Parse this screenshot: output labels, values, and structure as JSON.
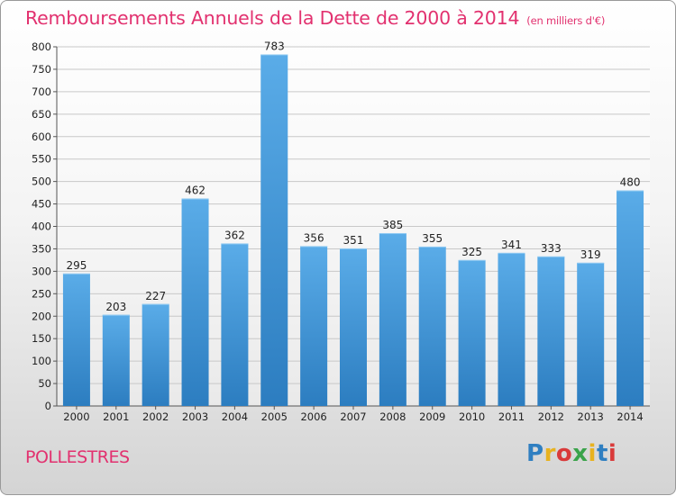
{
  "header": {
    "title": "Remboursements Annuels de la Dette de 2000 à 2014",
    "subtitle": "(en milliers d'€)"
  },
  "footer": {
    "town": "POLLESTRES",
    "logo_text": "Proxiti",
    "logo_letters": [
      {
        "ch": "P",
        "color": "#2f7fc1"
      },
      {
        "ch": "r",
        "color": "#e8b21f"
      },
      {
        "ch": "o",
        "color": "#d93a3a"
      },
      {
        "ch": "x",
        "color": "#3aa34a"
      },
      {
        "ch": "i",
        "color": "#e8b21f"
      },
      {
        "ch": "t",
        "color": "#2f7fc1"
      },
      {
        "ch": "i",
        "color": "#d93a3a"
      }
    ]
  },
  "colors": {
    "bar_top": "#5aace8",
    "bar_bottom": "#2c7dc0",
    "title": "#e2316f"
  },
  "chart_data": {
    "type": "bar",
    "title": "Remboursements Annuels de la Dette de 2000 à 2014",
    "subtitle": "(en milliers d'€)",
    "xlabel": "",
    "ylabel": "",
    "categories": [
      "2000",
      "2001",
      "2002",
      "2003",
      "2004",
      "2005",
      "2006",
      "2007",
      "2008",
      "2009",
      "2010",
      "2011",
      "2012",
      "2013",
      "2014"
    ],
    "values": [
      295,
      203,
      227,
      462,
      362,
      783,
      356,
      351,
      385,
      355,
      325,
      341,
      333,
      319,
      480
    ],
    "ylim": [
      0,
      800
    ],
    "yticks": [
      0,
      50,
      100,
      150,
      200,
      250,
      300,
      350,
      400,
      450,
      500,
      550,
      600,
      650,
      700,
      750,
      800
    ],
    "grid": true,
    "legend": "none"
  }
}
